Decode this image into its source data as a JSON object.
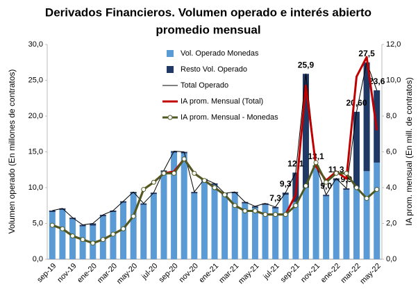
{
  "chart_data": {
    "type": "bar",
    "title": [
      "Derivados Financieros. Volumen operado e interés abierto",
      "promedio mensual"
    ],
    "y_label": "Volumen operado (En millones de contratos)",
    "y2_label": "IA prom. mensual (En mill. de contratos)",
    "categories": [
      "sep-19",
      null,
      "nov-19",
      null,
      "ene-20",
      null,
      "mar-20",
      null,
      "may-20",
      null,
      "jul-20",
      null,
      "sep-20",
      null,
      "nov-20",
      null,
      "ene-21",
      null,
      "mar-21",
      null,
      "may-21",
      null,
      "jul-21",
      null,
      "sep-21",
      null,
      "nov-21",
      null,
      "ene-22",
      null,
      "mar-22",
      null,
      "may-22"
    ],
    "ylim": [
      0,
      30
    ],
    "yticks": [
      {
        "value": 0,
        "label": "0,0"
      },
      {
        "value": 5,
        "label": "5,0"
      },
      {
        "value": 10,
        "label": "10,0"
      },
      {
        "value": 15,
        "label": "15,0"
      },
      {
        "value": 20,
        "label": "20,0"
      },
      {
        "value": 25,
        "label": "25,0"
      },
      {
        "value": 30,
        "label": "30,0"
      }
    ],
    "y2lim": [
      0,
      12
    ],
    "y2ticks": [
      {
        "value": 0,
        "label": "0,0"
      },
      {
        "value": 2,
        "label": "2,0"
      },
      {
        "value": 4,
        "label": "4,0"
      },
      {
        "value": 6,
        "label": "6,0"
      },
      {
        "value": 8,
        "label": "8,0"
      },
      {
        "value": 10,
        "label": "10,0"
      },
      {
        "value": 12,
        "label": "12,0"
      }
    ],
    "series": [
      {
        "name": "Vol. Operado Monedas",
        "type": "bar",
        "color": "#5b9bd5",
        "values": [
          6.6,
          6.9,
          5.6,
          4.6,
          4.7,
          6.0,
          6.6,
          7.9,
          9.2,
          7.6,
          9.1,
          12.2,
          14.9,
          14.8,
          9.2,
          11.0,
          10.4,
          9.0,
          9.2,
          7.8,
          7.2,
          7.6,
          7.1,
          9.0,
          8.0,
          10.0,
          12.8,
          8.8,
          11.0,
          9.7,
          10.0,
          12.3,
          13.5
        ]
      },
      {
        "name": "Resto Vol. Operado",
        "type": "bar",
        "color": "#1f3864",
        "values": [
          0.2,
          0.2,
          0.2,
          0.2,
          0.3,
          0.2,
          0.2,
          0.2,
          0.2,
          0.2,
          0.2,
          0.2,
          0.2,
          0.2,
          0.2,
          0.2,
          0.2,
          0.2,
          0.2,
          0.2,
          0.2,
          0.2,
          0.2,
          0.3,
          4.1,
          15.9,
          0.3,
          0.2,
          0.3,
          0.2,
          10.6,
          15.2,
          10.1
        ]
      },
      {
        "name": "Total Operado",
        "type": "line",
        "color": "#000000",
        "values": [
          6.8,
          7.1,
          5.8,
          4.8,
          5.0,
          6.2,
          6.8,
          8.1,
          9.4,
          7.8,
          9.3,
          12.4,
          15.1,
          15.0,
          9.4,
          11.2,
          10.6,
          9.2,
          9.4,
          8.0,
          7.4,
          7.8,
          7.3,
          9.3,
          12.1,
          25.9,
          13.1,
          9.0,
          11.3,
          9.9,
          20.6,
          27.5,
          23.6
        ],
        "value_labels": [
          null,
          null,
          null,
          null,
          null,
          null,
          null,
          null,
          null,
          null,
          null,
          null,
          null,
          null,
          null,
          null,
          null,
          null,
          null,
          null,
          null,
          null,
          "7,3",
          "9,3",
          "12,1",
          "25,9",
          "13,1",
          "9,0",
          "11,3",
          "9,9",
          "20,60",
          "27,5",
          "23,6"
        ]
      },
      {
        "name": "IA prom. Mensual (Total)",
        "type": "line",
        "axis": "y2",
        "color": "#c00000",
        "values": [
          1.9,
          1.7,
          1.3,
          1.1,
          0.9,
          1.1,
          1.4,
          1.7,
          2.4,
          3.9,
          4.3,
          4.8,
          4.9,
          5.6,
          4.8,
          4.4,
          4.0,
          3.6,
          3.0,
          2.7,
          2.7,
          2.5,
          2.5,
          2.5,
          3.6,
          9.7,
          5.2,
          4.4,
          4.9,
          4.5,
          10.2,
          11.3,
          7.2
        ]
      },
      {
        "name": "IA prom. Mensual - Monedas",
        "type": "line",
        "axis": "y2",
        "color": "#4f5a22",
        "marker": true,
        "values": [
          1.9,
          1.7,
          1.3,
          1.1,
          0.9,
          1.1,
          1.4,
          1.7,
          2.4,
          3.9,
          4.3,
          4.8,
          4.8,
          5.6,
          4.8,
          4.4,
          4.0,
          3.6,
          3.0,
          2.7,
          2.7,
          2.5,
          2.5,
          2.5,
          3.0,
          4.1,
          5.4,
          4.3,
          4.8,
          4.8,
          4.0,
          3.4,
          3.9
        ]
      }
    ]
  }
}
